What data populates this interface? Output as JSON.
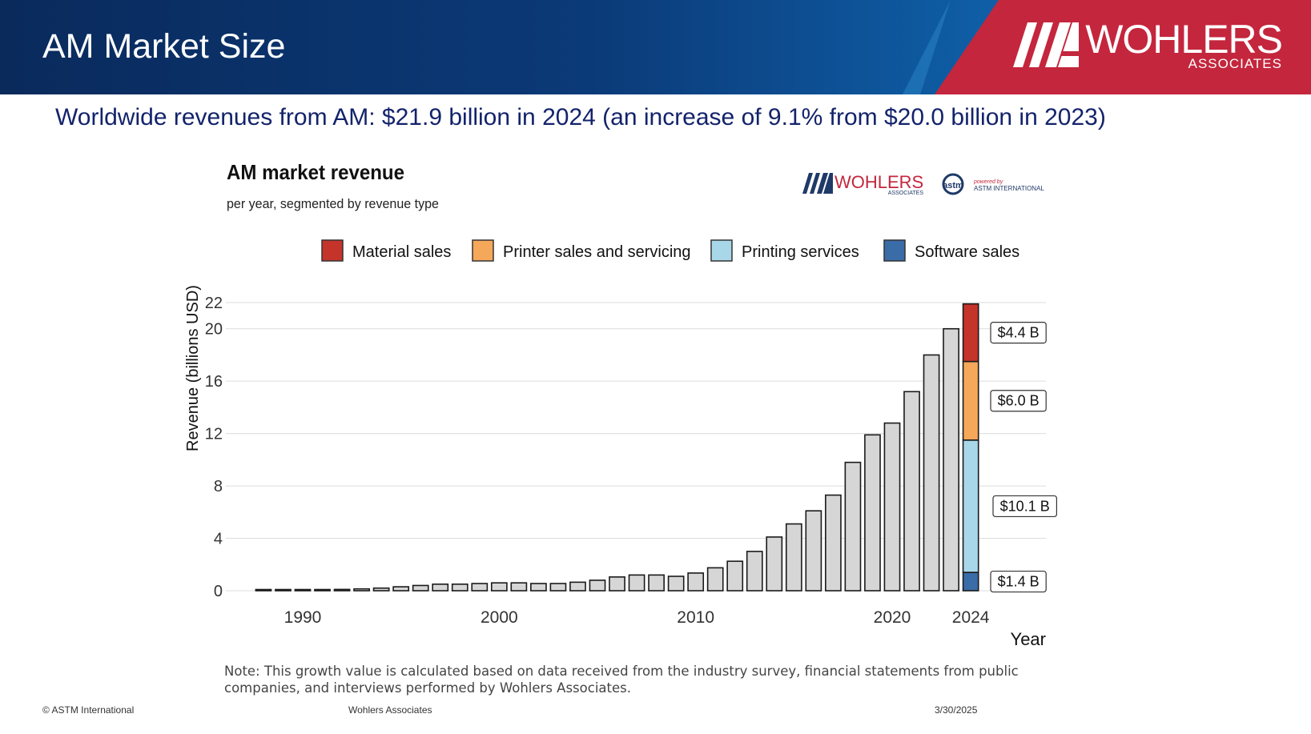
{
  "header": {
    "title": "AM Market Size",
    "brand_name": "WOHLERS",
    "brand_sub": "ASSOCIATES"
  },
  "subtitle": "Worldwide revenues from AM: $21.9 billion in 2024 (an increase of 9.1% from $20.0 billion in 2023)",
  "chart_data": {
    "type": "bar",
    "title": "AM market revenue",
    "subtitle": "per year, segmented by revenue type",
    "xlabel": "Year",
    "ylabel": "Revenue (billions USD)",
    "ylim": [
      0,
      22
    ],
    "yticks": [
      0,
      4,
      8,
      12,
      16,
      20,
      22
    ],
    "xticks": [
      1990,
      2000,
      2010,
      2020,
      2024
    ],
    "grid": true,
    "legend_position": "top",
    "logos": {
      "wohlers": "WOHLERS",
      "wohlers_sub": "ASSOCIATES",
      "astm_powered": "powered by",
      "astm_name": "ASTM INTERNATIONAL"
    },
    "total_series": {
      "color": "#d6d6d6",
      "x": [
        1988,
        1989,
        1990,
        1991,
        1992,
        1993,
        1994,
        1995,
        1996,
        1997,
        1998,
        1999,
        2000,
        2001,
        2002,
        2003,
        2004,
        2005,
        2006,
        2007,
        2008,
        2009,
        2010,
        2011,
        2012,
        2013,
        2014,
        2015,
        2016,
        2017,
        2018,
        2019,
        2020,
        2021,
        2022,
        2023
      ],
      "values": [
        0.01,
        0.03,
        0.05,
        0.07,
        0.1,
        0.14,
        0.2,
        0.3,
        0.4,
        0.5,
        0.5,
        0.55,
        0.6,
        0.6,
        0.55,
        0.55,
        0.65,
        0.8,
        1.05,
        1.2,
        1.2,
        1.1,
        1.35,
        1.75,
        2.25,
        3.0,
        4.1,
        5.1,
        6.1,
        7.3,
        9.8,
        11.9,
        12.8,
        15.2,
        18.0,
        20.0
      ]
    },
    "stacked_year": 2024,
    "series": [
      {
        "name": "Software sales",
        "color": "#3a6ca8",
        "value": 1.4,
        "label": "$1.4 B"
      },
      {
        "name": "Printing services",
        "color": "#a9d7ea",
        "value": 10.1,
        "label": "$10.1 B"
      },
      {
        "name": "Printer sales and servicing",
        "color": "#f5a85a",
        "value": 6.0,
        "label": "$6.0 B"
      },
      {
        "name": "Material sales",
        "color": "#c4342b",
        "value": 4.4,
        "label": "$4.4 B"
      }
    ],
    "legend": [
      {
        "name": "Material sales",
        "color": "#c4342b"
      },
      {
        "name": "Printer sales and servicing",
        "color": "#f5a85a"
      },
      {
        "name": "Printing services",
        "color": "#a9d7ea"
      },
      {
        "name": "Software sales",
        "color": "#3a6ca8"
      }
    ]
  },
  "note": "Note: This growth value is calculated based on data received from the industry survey, financial statements from public companies, and interviews performed by Wohlers Associates.",
  "footer": {
    "copyright": "© ASTM International",
    "center": "Wohlers Associates",
    "date": "3/30/2025"
  },
  "colors": {
    "header_dark": "#0a2a5c",
    "header_red": "#c4263d",
    "subtitle": "#13236b"
  }
}
